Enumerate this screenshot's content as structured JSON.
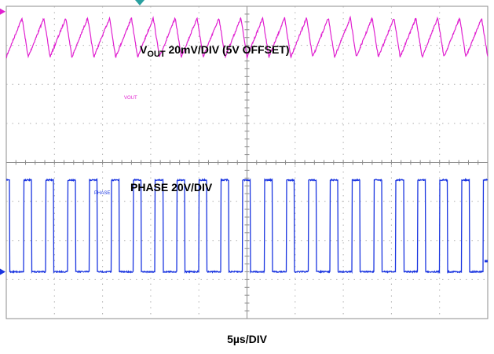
{
  "chart_data": {
    "type": "line",
    "grid": true,
    "grid_divisions": {
      "horizontal": 10,
      "vertical": 8
    },
    "time_per_division": "5µs/DIV",
    "cycles_per_screen": 22,
    "series": [
      {
        "name": "VOUT",
        "label_main": "V",
        "label_sub": "OUT",
        "label_rest": " 20mV/DIV (5V OFFSET)",
        "trace_tag": "VOUT",
        "color": "#e020d0",
        "waveform": "sawtooth-ripple",
        "ripple_pp_div": 1.0,
        "center_div_from_top": 7.2
      },
      {
        "name": "PHASE",
        "label": "PHASE 20V/DIV",
        "trace_tag": "PHASE",
        "color": "#1a35e0",
        "waveform": "pulse",
        "amplitude_div": 2.35,
        "baseline_div_from_bottom": 1.2,
        "duty_fraction": 0.36
      }
    ]
  },
  "footer_label": "5µs/DIV"
}
